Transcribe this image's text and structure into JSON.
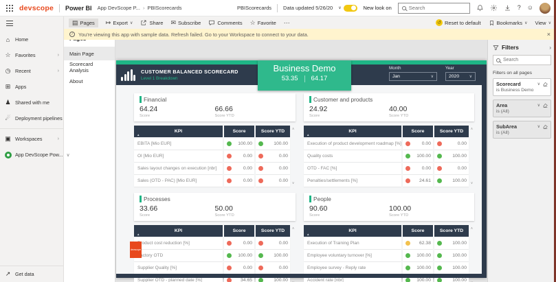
{
  "topbar": {
    "logo_text": "devscope",
    "product_name": "Power BI",
    "breadcrumb": [
      "App DevScope P...",
      "PBIScorecards"
    ],
    "report_title": "PBIScorecards",
    "data_updated": "Data updated 5/26/20",
    "new_look_label": "New look on",
    "search_placeholder": "Search"
  },
  "toolbar": {
    "pages_label": "Pages",
    "export_label": "Export",
    "share_label": "Share",
    "subscribe_label": "Subscribe",
    "comments_label": "Comments",
    "favorite_label": "Favorite",
    "reset_label": "Reset to default",
    "bookmarks_label": "Bookmarks",
    "view_label": "View"
  },
  "banner": {
    "message": "You're viewing this app with sample data. Refresh failed. Go to your Workspace to connect to your data."
  },
  "sidebar": {
    "items": [
      {
        "label": "Home",
        "icon": "home",
        "chevron": ""
      },
      {
        "label": "Favorites",
        "icon": "star",
        "chevron": "›"
      },
      {
        "label": "Recent",
        "icon": "clock",
        "chevron": "›"
      },
      {
        "label": "Apps",
        "icon": "apps",
        "chevron": ""
      },
      {
        "label": "Shared with me",
        "icon": "people",
        "chevron": ""
      },
      {
        "label": "Deployment pipelines",
        "icon": "rocket",
        "chevron": ""
      },
      {
        "label": "Workspaces",
        "icon": "workspaces",
        "chevron": "›",
        "divider_before": true
      },
      {
        "label": "App DevScope Pow...",
        "icon": "app-green",
        "chevron": "∨"
      }
    ],
    "get_data_label": "Get data"
  },
  "pages_panel": {
    "title": "Pages",
    "items": [
      {
        "label": "Main Page",
        "selected": true
      },
      {
        "label": "Scorecard Analysis",
        "selected": false
      },
      {
        "label": "About",
        "selected": false
      }
    ]
  },
  "report": {
    "title": "CUSTOMER BALANCED SCORECARD",
    "subtitle": "Level 1 Breakdown",
    "scorecard_name": "Business Demo",
    "score": "53.35",
    "score_ytd": "64.17",
    "month_label": "Month",
    "month_value": "Jan",
    "year_label": "Year",
    "year_value": "2020",
    "score_label": "Score",
    "score_ytd_label": "Score YTD",
    "columns": [
      "KPI",
      "Score",
      "Score YTD"
    ],
    "watermark": "devscope",
    "quadrants": [
      {
        "name": "Financial",
        "score": "64.24",
        "score_ytd": "66.66",
        "rows": [
          {
            "kpi": "EBITA [Mio EUR]",
            "score": "100.00",
            "score_status": "green",
            "ytd": "100.00",
            "ytd_status": "green"
          },
          {
            "kpi": "OI [Mio EUR]",
            "score": "0.00",
            "score_status": "red",
            "ytd": "0.00",
            "ytd_status": "red"
          },
          {
            "kpi": "Sales layout changes on execution [nbr]",
            "score": "0.00",
            "score_status": "red",
            "ytd": "0.00",
            "ytd_status": "red"
          },
          {
            "kpi": "Sales (OTD - PAC) [Mio EUR]",
            "score": "0.00",
            "score_status": "red",
            "ytd": "0.00",
            "ytd_status": "red"
          }
        ]
      },
      {
        "name": "Customer and products",
        "score": "24.92",
        "score_ytd": "40.00",
        "rows": [
          {
            "kpi": "Execution of product development roadmap [%]",
            "score": "0.00",
            "score_status": "red",
            "ytd": "0.00",
            "ytd_status": "red"
          },
          {
            "kpi": "Quality costs",
            "score": "100.00",
            "score_status": "green",
            "ytd": "100.00",
            "ytd_status": "green"
          },
          {
            "kpi": "OTD - FAC [%]",
            "score": "0.00",
            "score_status": "red",
            "ytd": "0.00",
            "ytd_status": "red"
          },
          {
            "kpi": "Penalties/settlements [%]",
            "score": "24.61",
            "score_status": "red",
            "ytd": "100.00",
            "ytd_status": "green"
          }
        ]
      },
      {
        "name": "Processes",
        "score": "33.66",
        "score_ytd": "50.00",
        "rows": [
          {
            "kpi": "Product cost reduction [%]",
            "score": "0.00",
            "score_status": "red",
            "ytd": "0.00",
            "ytd_status": "red"
          },
          {
            "kpi": "Factory OTD",
            "score": "100.00",
            "score_status": "green",
            "ytd": "100.00",
            "ytd_status": "green"
          },
          {
            "kpi": "Supplier Quality [%]",
            "score": "0.00",
            "score_status": "red",
            "ytd": "0.00",
            "ytd_status": "red"
          },
          {
            "kpi": "Supplier OTD - planned date [%]",
            "score": "34.65",
            "score_status": "red",
            "ytd": "100.00",
            "ytd_status": "green"
          }
        ]
      },
      {
        "name": "People",
        "score": "90.60",
        "score_ytd": "100.00",
        "rows": [
          {
            "kpi": "Execution of Training Plan",
            "score": "62.38",
            "score_status": "amber",
            "ytd": "100.00",
            "ytd_status": "green"
          },
          {
            "kpi": "Employee voluntary turnover [%]",
            "score": "100.00",
            "score_status": "green",
            "ytd": "100.00",
            "ytd_status": "green"
          },
          {
            "kpi": "Employee survey - Reply rate",
            "score": "100.00",
            "score_status": "green",
            "ytd": "100.00",
            "ytd_status": "green"
          },
          {
            "kpi": "Accident rate [nbr]",
            "score": "100.00",
            "score_status": "green",
            "ytd": "100.00",
            "ytd_status": "green"
          }
        ]
      }
    ]
  },
  "filters": {
    "title": "Filters",
    "search_placeholder": "Search",
    "section_label": "Filters on all pages",
    "cards": [
      {
        "name": "Scorecard",
        "value": "is Business Demo",
        "applied": true
      },
      {
        "name": "Area",
        "value": "is (All)",
        "applied": false
      },
      {
        "name": "SubArea",
        "value": "is (All)",
        "applied": false
      }
    ]
  },
  "icons": {
    "home": "⌂",
    "star": "☆",
    "clock": "◷",
    "apps": "⊞",
    "people": "♟",
    "rocket": "☄",
    "workspaces": "▣",
    "get_data": "↗",
    "pages": "▤",
    "export": "↦",
    "subscribe": "✉",
    "favorite": "☆",
    "more": "⋯",
    "reset": "↺",
    "chevron_down": "∨",
    "chevron_right": "›",
    "close": "×",
    "help": "?",
    "smiley": "☺",
    "info": "i",
    "sort": "▲",
    "scroll_up": "∧",
    "scroll_down": "∨"
  },
  "colors": {
    "accent_green": "#1FB586",
    "navy": "#2E3B4C",
    "dot_green": "#55B84F",
    "dot_red": "#EE6A5A",
    "dot_amber": "#F2C14E",
    "brand_orange": "#E8491D",
    "pbi_yellow": "#F2C811",
    "banner_bg": "#FFF4CE"
  }
}
